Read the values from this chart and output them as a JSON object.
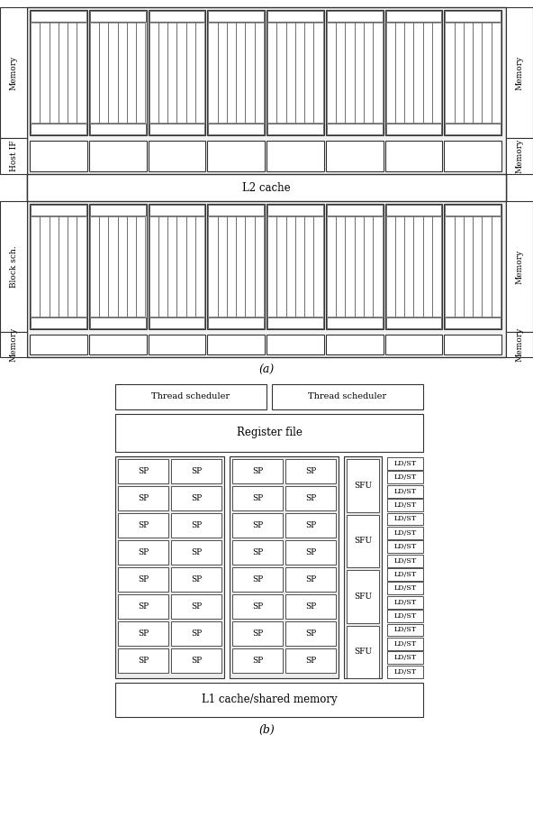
{
  "fig_width": 5.92,
  "fig_height": 9.07,
  "bg_color": "#ffffff",
  "box_color": "#ffffff",
  "edge_color": "#333333",
  "sm_bg": "#e8e8e8",
  "left_labels": [
    "Memory",
    "Host IF",
    "Block sch.",
    "Memory"
  ],
  "right_labels": [
    "Memory",
    "Memory",
    "Memory",
    "Memory"
  ],
  "l2_label": "L2 cache",
  "l1_label": "L1 cache/shared memory",
  "reg_label": "Register file",
  "ts_label1": "Thread scheduler",
  "ts_label2": "Thread scheduler",
  "caption_a": "(a)",
  "caption_b": "(b)",
  "n_sm_cols": 8,
  "n_sp_rows": 8,
  "n_stripes_per_sm": 6,
  "n_ldst": 16,
  "n_sfu": 4
}
